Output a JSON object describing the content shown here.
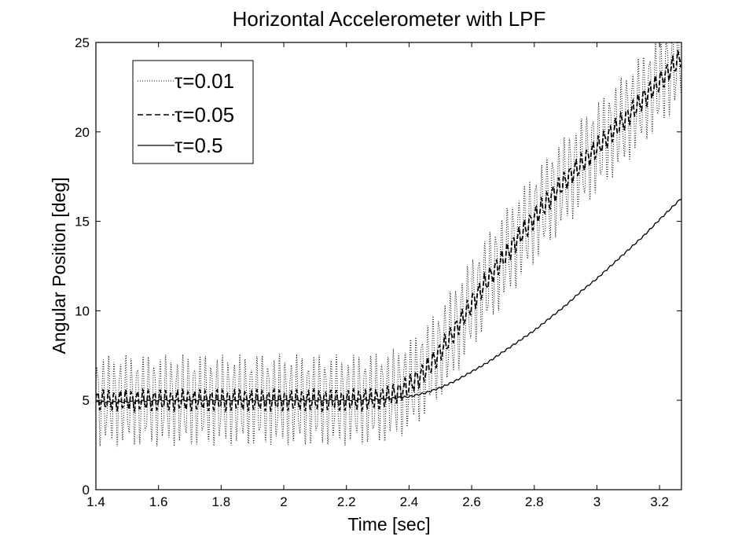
{
  "chart_data": {
    "type": "line",
    "title": "Horizontal Accelerometer with LPF",
    "xlabel": "Time [sec]",
    "ylabel": "Angular Position [deg]",
    "xlim": [
      1.4,
      3.27
    ],
    "ylim": [
      0,
      25
    ],
    "xticks": [
      "1.4",
      "1.6",
      "1.8",
      "2",
      "2.2",
      "2.4",
      "2.6",
      "2.8",
      "3",
      "3.2"
    ],
    "xtick_values": [
      1.4,
      1.6,
      1.8,
      2.0,
      2.2,
      2.4,
      2.6,
      2.8,
      3.0,
      3.2
    ],
    "yticks": [
      "0",
      "5",
      "10",
      "15",
      "20",
      "25"
    ],
    "ytick_values": [
      0,
      5,
      10,
      15,
      20,
      25
    ],
    "grid": false,
    "legend_position": "top-left",
    "series": [
      {
        "name": "τ=0.01",
        "style": "dotted",
        "color": "#000000",
        "x": [
          1.4,
          1.5,
          1.6,
          1.7,
          1.8,
          1.9,
          2.0,
          2.1,
          2.2,
          2.3,
          2.35,
          2.4,
          2.45,
          2.5,
          2.55,
          2.6,
          2.65,
          2.7,
          2.75,
          2.8,
          2.85,
          2.9,
          2.95,
          3.0,
          3.05,
          3.1,
          3.15,
          3.2,
          3.27
        ],
        "y": [
          5.0,
          5.0,
          5.0,
          5.0,
          5.0,
          5.0,
          5.0,
          5.0,
          5.0,
          5.1,
          5.3,
          5.8,
          6.6,
          7.7,
          9.0,
          10.4,
          11.7,
          12.9,
          14.1,
          15.2,
          16.3,
          17.3,
          18.2,
          19.1,
          20.0,
          20.9,
          21.9,
          22.8,
          24.2
        ],
        "oscillation_amplitude_deg": 2.6
      },
      {
        "name": "τ=0.05",
        "style": "dashed",
        "color": "#000000",
        "x": [
          1.4,
          1.5,
          1.6,
          1.7,
          1.8,
          1.9,
          2.0,
          2.1,
          2.2,
          2.3,
          2.35,
          2.4,
          2.45,
          2.5,
          2.55,
          2.6,
          2.65,
          2.7,
          2.75,
          2.8,
          2.85,
          2.9,
          2.95,
          3.0,
          3.05,
          3.1,
          3.15,
          3.2,
          3.27
        ],
        "y": [
          5.0,
          5.0,
          5.0,
          5.0,
          5.0,
          5.0,
          5.0,
          5.0,
          5.0,
          5.1,
          5.3,
          5.8,
          6.6,
          7.7,
          9.0,
          10.4,
          11.7,
          12.9,
          14.1,
          15.2,
          16.3,
          17.3,
          18.2,
          19.1,
          20.0,
          20.9,
          21.9,
          22.8,
          24.2
        ],
        "oscillation_amplitude_deg": 0.6
      },
      {
        "name": "τ=0.5",
        "style": "solid",
        "color": "#000000",
        "x": [
          1.4,
          1.5,
          1.6,
          1.7,
          1.8,
          1.9,
          2.0,
          2.1,
          2.2,
          2.3,
          2.4,
          2.45,
          2.5,
          2.55,
          2.6,
          2.65,
          2.7,
          2.75,
          2.8,
          2.85,
          2.9,
          2.95,
          3.0,
          3.05,
          3.1,
          3.15,
          3.2,
          3.27
        ],
        "y": [
          4.9,
          4.9,
          5.0,
          5.0,
          5.0,
          5.0,
          5.0,
          5.0,
          5.0,
          5.05,
          5.2,
          5.4,
          5.7,
          6.1,
          6.6,
          7.1,
          7.7,
          8.3,
          8.9,
          9.6,
          10.3,
          11.1,
          11.8,
          12.6,
          13.4,
          14.2,
          15.1,
          16.3
        ],
        "oscillation_amplitude_deg": 0.05
      }
    ]
  }
}
